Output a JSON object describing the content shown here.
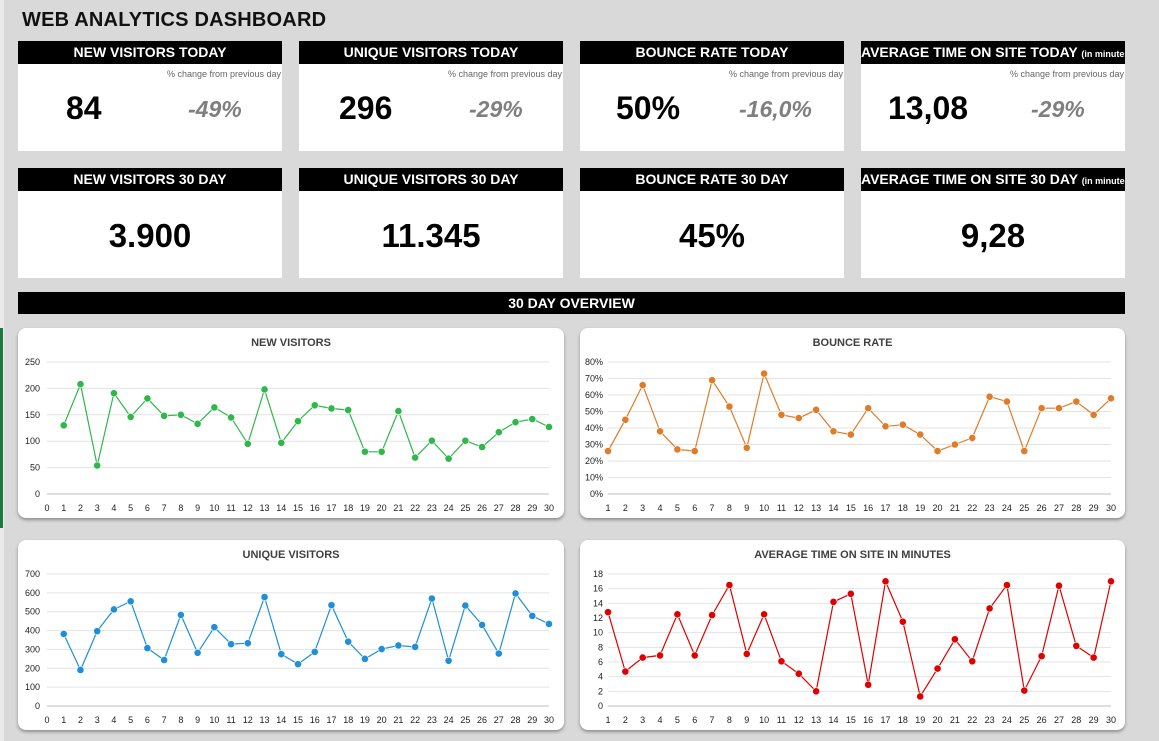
{
  "dashboard": {
    "title": "WEB ANALYTICS DASHBOARD",
    "overview_label": "30 DAY OVERVIEW"
  },
  "kpis_today": [
    {
      "title": "NEW VISITORS TODAY",
      "title_note": "",
      "sub": "% change from previous day",
      "value": "84",
      "change": "-49%"
    },
    {
      "title": "UNIQUE VISITORS TODAY",
      "title_note": "",
      "sub": "% change from previous day",
      "value": "296",
      "change": "-29%"
    },
    {
      "title": "BOUNCE RATE TODAY",
      "title_note": "",
      "sub": "% change from previous day",
      "value": "50%",
      "change": "-16,0%"
    },
    {
      "title": "AVERAGE TIME ON SITE TODAY",
      "title_note": "(in minutes)",
      "sub": "% change from previous day",
      "value": "13,08",
      "change": "-29%"
    }
  ],
  "kpis_30day": [
    {
      "title": "NEW VISITORS 30 DAY",
      "title_note": "",
      "value": "3.900"
    },
    {
      "title": "UNIQUE VISITORS 30 DAY",
      "title_note": "",
      "value": "11.345"
    },
    {
      "title": "BOUNCE RATE 30 DAY",
      "title_note": "",
      "value": "45%"
    },
    {
      "title": "AVERAGE TIME ON SITE 30 DAY",
      "title_note": "(in minutes)",
      "value": "9,28"
    }
  ],
  "colors": {
    "new_visitors": "#2eb84a",
    "bounce_rate": "#e07b28",
    "unique_visitors": "#1f8fd8",
    "avg_time": "#e00000"
  },
  "chart_data": [
    {
      "type": "line",
      "title": "NEW VISITORS",
      "xlabel": "",
      "ylabel": "",
      "x": [
        1,
        2,
        3,
        4,
        5,
        6,
        7,
        8,
        9,
        10,
        11,
        12,
        13,
        14,
        15,
        16,
        17,
        18,
        19,
        20,
        21,
        22,
        23,
        24,
        25,
        26,
        27,
        28,
        29,
        30
      ],
      "xlim": [
        0,
        30
      ],
      "ylim": [
        0,
        250
      ],
      "yticks": [
        0,
        50,
        100,
        150,
        200,
        250
      ],
      "ytick_labels": [
        "0",
        "50",
        "100",
        "150",
        "200",
        "250"
      ],
      "grid": true,
      "legend": "none",
      "series": [
        {
          "values": [
            130,
            208,
            54,
            191,
            146,
            181,
            148,
            150,
            133,
            164,
            145,
            95,
            198,
            97,
            138,
            168,
            162,
            159,
            80,
            80,
            157,
            69,
            101,
            67,
            101,
            89,
            117,
            136,
            142,
            127
          ]
        }
      ]
    },
    {
      "type": "line",
      "title": "BOUNCE RATE",
      "xlabel": "",
      "ylabel": "",
      "x": [
        1,
        2,
        3,
        4,
        5,
        6,
        7,
        8,
        9,
        10,
        11,
        12,
        13,
        14,
        15,
        16,
        17,
        18,
        19,
        20,
        21,
        22,
        23,
        24,
        25,
        26,
        27,
        28,
        29,
        30
      ],
      "xlim": [
        1,
        30
      ],
      "ylim": [
        0,
        80
      ],
      "yticks": [
        0,
        10,
        20,
        30,
        40,
        50,
        60,
        70,
        80
      ],
      "ytick_labels": [
        "0%",
        "10%",
        "20%",
        "30%",
        "40%",
        "50%",
        "60%",
        "70%",
        "80%"
      ],
      "grid": true,
      "legend": "none",
      "series": [
        {
          "values": [
            26,
            45,
            66,
            38,
            27,
            26,
            69,
            53,
            28,
            73,
            48,
            46,
            51,
            38,
            36,
            52,
            41,
            42,
            36,
            26,
            30,
            34,
            59,
            56,
            26,
            52,
            52,
            56,
            48,
            58
          ]
        }
      ]
    },
    {
      "type": "line",
      "title": "UNIQUE VISITORS",
      "xlabel": "",
      "ylabel": "",
      "x": [
        1,
        2,
        3,
        4,
        5,
        6,
        7,
        8,
        9,
        10,
        11,
        12,
        13,
        14,
        15,
        16,
        17,
        18,
        19,
        20,
        21,
        22,
        23,
        24,
        25,
        26,
        27,
        28,
        29,
        30
      ],
      "xlim": [
        0,
        30
      ],
      "ylim": [
        0,
        700
      ],
      "yticks": [
        0,
        100,
        200,
        300,
        400,
        500,
        600,
        700
      ],
      "ytick_labels": [
        "0",
        "100",
        "200",
        "300",
        "400",
        "500",
        "600",
        "700"
      ],
      "grid": true,
      "legend": "none",
      "series": [
        {
          "values": [
            382,
            191,
            397,
            512,
            555,
            307,
            244,
            483,
            282,
            418,
            328,
            333,
            578,
            275,
            222,
            287,
            535,
            341,
            250,
            302,
            321,
            313,
            570,
            240,
            533,
            430,
            278,
            597,
            478,
            435
          ]
        }
      ]
    },
    {
      "type": "line",
      "title": "AVERAGE TIME ON SITE IN MINUTES",
      "xlabel": "",
      "ylabel": "",
      "x": [
        1,
        2,
        3,
        4,
        5,
        6,
        7,
        8,
        9,
        10,
        11,
        12,
        13,
        14,
        15,
        16,
        17,
        18,
        19,
        20,
        21,
        22,
        23,
        24,
        25,
        26,
        27,
        28,
        29,
        30
      ],
      "xlim": [
        1,
        30
      ],
      "ylim": [
        0,
        18
      ],
      "yticks": [
        0,
        2,
        4,
        6,
        8,
        10,
        12,
        14,
        16,
        18
      ],
      "ytick_labels": [
        "0",
        "2",
        "4",
        "6",
        "8",
        "10",
        "12",
        "14",
        "16",
        "18"
      ],
      "grid": true,
      "legend": "none",
      "series": [
        {
          "values": [
            12.8,
            4.7,
            6.6,
            6.9,
            12.5,
            6.9,
            12.4,
            16.5,
            7.1,
            12.5,
            6.1,
            4.4,
            2.0,
            14.2,
            15.3,
            2.9,
            17.0,
            11.5,
            1.3,
            5.1,
            9.1,
            6.1,
            13.3,
            16.5,
            2.1,
            6.8,
            16.4,
            8.2,
            6.6,
            17.0
          ]
        }
      ]
    }
  ]
}
